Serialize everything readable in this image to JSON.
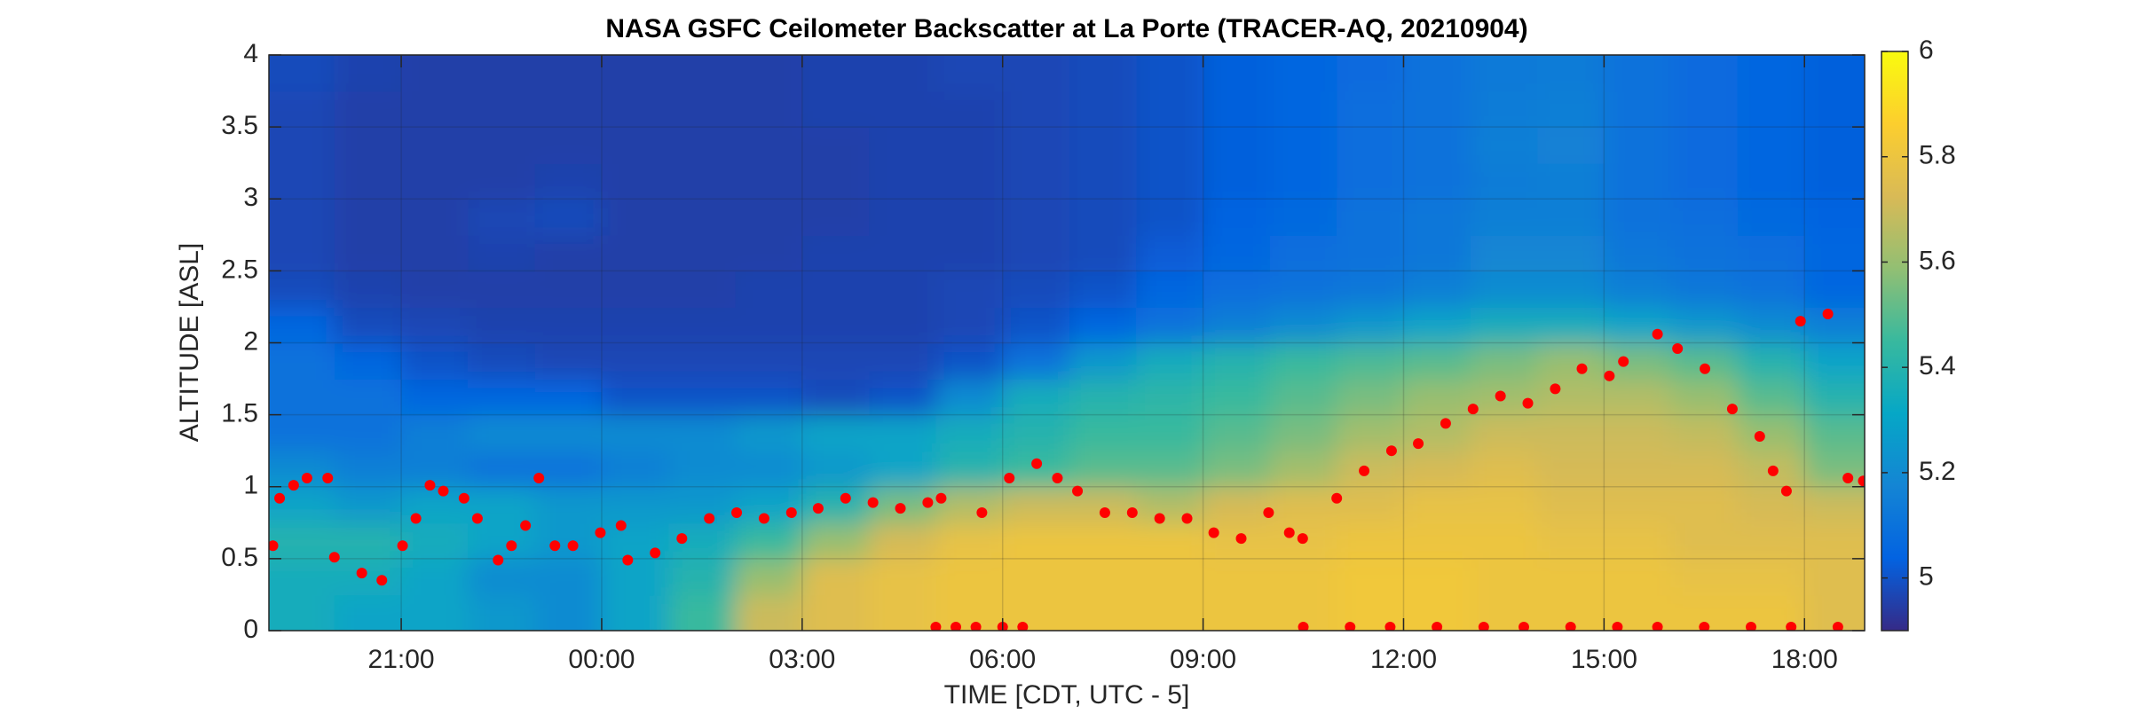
{
  "chart_data": {
    "type": "heatmap",
    "title": "NASA GSFC Ceilometer Backscatter at La Porte (TRACER-AQ, 20210904)",
    "xlabel": "TIME [CDT, UTC - 5]",
    "ylabel": "ALTITUDE [ASL]",
    "colormap": "parula",
    "grid": true,
    "xlim": [
      19.02,
      42.9
    ],
    "ylim": [
      0,
      4
    ],
    "xticks": [
      {
        "value": 21,
        "label": "21:00"
      },
      {
        "value": 24,
        "label": "00:00"
      },
      {
        "value": 27,
        "label": "03:00"
      },
      {
        "value": 30,
        "label": "06:00"
      },
      {
        "value": 33,
        "label": "09:00"
      },
      {
        "value": 36,
        "label": "12:00"
      },
      {
        "value": 39,
        "label": "15:00"
      },
      {
        "value": 42,
        "label": "18:00"
      }
    ],
    "yticks": [
      0,
      0.5,
      1,
      1.5,
      2,
      2.5,
      3,
      3.5,
      4
    ],
    "clim": [
      4.9,
      6
    ],
    "cticks": [
      5,
      5.2,
      5.4,
      5.6,
      5.8,
      6
    ],
    "x": [
      19.5,
      20.5,
      21.5,
      22.5,
      23.5,
      24.5,
      25.5,
      26.5,
      27.5,
      28.5,
      29.5,
      30.5,
      31.5,
      32.5,
      33.5,
      34.5,
      35.5,
      36.5,
      37.5,
      38.5,
      39.5,
      40.5,
      41.5,
      42.5
    ],
    "y": [
      0.125,
      0.375,
      0.625,
      0.875,
      1.125,
      1.375,
      1.625,
      1.875,
      2.125,
      2.375,
      2.625,
      2.875,
      3.125,
      3.375,
      3.625,
      3.875
    ],
    "z": [
      [
        5.35,
        5.3,
        5.3,
        5.25,
        5.2,
        5.3,
        5.45,
        5.7,
        5.75,
        5.78,
        5.8,
        5.8,
        5.8,
        5.8,
        5.8,
        5.8,
        5.82,
        5.82,
        5.8,
        5.8,
        5.8,
        5.8,
        5.8,
        5.75
      ],
      [
        5.35,
        5.35,
        5.3,
        5.2,
        5.2,
        5.3,
        5.4,
        5.6,
        5.75,
        5.78,
        5.8,
        5.8,
        5.8,
        5.8,
        5.8,
        5.8,
        5.82,
        5.82,
        5.8,
        5.8,
        5.8,
        5.78,
        5.78,
        5.75
      ],
      [
        5.4,
        5.4,
        5.35,
        5.3,
        5.25,
        5.3,
        5.35,
        5.45,
        5.6,
        5.72,
        5.78,
        5.8,
        5.8,
        5.8,
        5.78,
        5.78,
        5.8,
        5.8,
        5.8,
        5.78,
        5.78,
        5.75,
        5.75,
        5.75
      ],
      [
        5.3,
        5.25,
        5.3,
        5.3,
        5.25,
        5.25,
        5.25,
        5.3,
        5.4,
        5.55,
        5.65,
        5.7,
        5.7,
        5.65,
        5.72,
        5.75,
        5.75,
        5.78,
        5.78,
        5.75,
        5.75,
        5.75,
        5.72,
        5.7
      ],
      [
        5.2,
        5.15,
        5.15,
        5.1,
        5.1,
        5.15,
        5.2,
        5.2,
        5.25,
        5.3,
        5.4,
        5.45,
        5.5,
        5.5,
        5.55,
        5.62,
        5.7,
        5.72,
        5.75,
        5.72,
        5.72,
        5.72,
        5.68,
        5.55
      ],
      [
        5.1,
        5.1,
        5.15,
        5.2,
        5.2,
        5.2,
        5.2,
        5.25,
        5.3,
        5.3,
        5.35,
        5.4,
        5.45,
        5.45,
        5.5,
        5.55,
        5.62,
        5.65,
        5.7,
        5.7,
        5.7,
        5.68,
        5.6,
        5.5
      ],
      [
        5.1,
        5.1,
        5.05,
        5.05,
        5.05,
        5.0,
        5.0,
        5.0,
        4.98,
        5.0,
        5.2,
        5.35,
        5.4,
        5.42,
        5.45,
        5.5,
        5.55,
        5.6,
        5.62,
        5.65,
        5.65,
        5.6,
        5.5,
        5.4
      ],
      [
        5.1,
        5.05,
        5.0,
        4.98,
        4.97,
        4.97,
        4.97,
        4.97,
        4.97,
        4.97,
        5.0,
        5.1,
        5.25,
        5.35,
        5.4,
        5.45,
        5.48,
        5.5,
        5.55,
        5.6,
        5.55,
        5.5,
        5.4,
        5.3
      ],
      [
        5.05,
        4.98,
        4.97,
        4.96,
        4.96,
        4.96,
        4.96,
        4.96,
        4.96,
        4.96,
        4.97,
        5.0,
        5.05,
        5.1,
        5.15,
        5.2,
        5.25,
        5.3,
        5.35,
        5.35,
        5.3,
        5.25,
        5.2,
        5.15
      ],
      [
        4.98,
        4.96,
        4.95,
        4.95,
        4.95,
        4.95,
        4.95,
        4.96,
        4.96,
        4.96,
        4.97,
        4.98,
        5.0,
        5.05,
        5.08,
        5.1,
        5.12,
        5.15,
        5.2,
        5.2,
        5.15,
        5.12,
        5.1,
        5.05
      ],
      [
        4.97,
        4.95,
        4.95,
        4.96,
        4.95,
        4.95,
        4.95,
        4.95,
        4.96,
        4.96,
        4.96,
        4.97,
        4.98,
        5.02,
        5.05,
        5.08,
        5.1,
        5.12,
        5.18,
        5.18,
        5.12,
        5.1,
        5.08,
        5.05
      ],
      [
        4.97,
        4.95,
        4.95,
        4.97,
        4.98,
        4.95,
        4.95,
        4.95,
        4.95,
        4.96,
        4.96,
        4.97,
        4.98,
        5.0,
        5.04,
        5.06,
        5.1,
        5.12,
        5.15,
        5.15,
        5.1,
        5.08,
        5.06,
        5.04
      ],
      [
        4.97,
        4.95,
        4.95,
        4.95,
        4.96,
        4.95,
        4.95,
        4.95,
        4.95,
        4.96,
        4.96,
        4.97,
        4.98,
        5.0,
        5.03,
        5.05,
        5.08,
        5.1,
        5.14,
        5.15,
        5.1,
        5.07,
        5.05,
        5.03
      ],
      [
        4.97,
        4.95,
        4.95,
        4.95,
        4.95,
        4.95,
        4.95,
        4.95,
        4.95,
        4.96,
        4.96,
        4.97,
        4.98,
        5.0,
        5.03,
        5.05,
        5.08,
        5.1,
        5.15,
        5.16,
        5.1,
        5.07,
        5.05,
        5.03
      ],
      [
        4.97,
        4.95,
        4.95,
        4.95,
        4.95,
        4.95,
        4.95,
        4.95,
        4.96,
        4.96,
        4.96,
        4.97,
        4.98,
        5.0,
        5.03,
        5.05,
        5.08,
        5.1,
        5.14,
        5.15,
        5.1,
        5.07,
        5.05,
        5.03
      ],
      [
        4.98,
        4.96,
        4.95,
        4.95,
        4.95,
        4.95,
        4.95,
        4.95,
        4.96,
        4.96,
        4.97,
        4.97,
        4.98,
        5.0,
        5.03,
        5.05,
        5.07,
        5.1,
        5.13,
        5.14,
        5.1,
        5.07,
        5.05,
        5.03
      ]
    ],
    "points": {
      "type": "scatter",
      "color": "#ff0000",
      "x": [
        19.08,
        19.18,
        19.39,
        19.59,
        19.9,
        20.0,
        20.41,
        20.71,
        21.02,
        21.22,
        21.43,
        21.63,
        21.94,
        22.14,
        22.45,
        22.65,
        22.86,
        23.06,
        23.3,
        23.57,
        23.98,
        24.29,
        24.39,
        24.8,
        25.2,
        25.61,
        26.02,
        26.43,
        26.84,
        27.24,
        27.65,
        28.06,
        28.47,
        28.88,
        29.08,
        29.69,
        30.1,
        30.51,
        30.82,
        31.12,
        31.53,
        31.94,
        32.35,
        32.76,
        33.16,
        33.57,
        33.98,
        34.29,
        34.49,
        35.0,
        35.41,
        35.82,
        36.22,
        36.63,
        37.04,
        37.45,
        37.86,
        38.27,
        38.67,
        39.08,
        39.29,
        39.8,
        40.1,
        40.51,
        40.92,
        41.33,
        41.53,
        41.73,
        41.94,
        42.35,
        42.65,
        42.88,
        29.0,
        29.3,
        29.6,
        30.0,
        30.3,
        34.5,
        35.2,
        35.8,
        36.5,
        37.2,
        37.8,
        38.5,
        39.2,
        39.8,
        40.5,
        41.2,
        41.8,
        42.5
      ],
      "y": [
        0.59,
        0.92,
        1.01,
        1.06,
        1.06,
        0.51,
        0.4,
        0.35,
        0.59,
        0.78,
        1.01,
        0.97,
        0.92,
        0.78,
        0.49,
        0.59,
        0.73,
        1.06,
        0.59,
        0.59,
        0.68,
        0.73,
        0.49,
        0.54,
        0.64,
        0.78,
        0.82,
        0.78,
        0.82,
        0.85,
        0.92,
        0.89,
        0.85,
        0.89,
        0.92,
        0.82,
        1.06,
        1.16,
        1.06,
        0.97,
        0.82,
        0.82,
        0.78,
        0.78,
        0.68,
        0.64,
        0.82,
        0.68,
        0.64,
        0.92,
        1.11,
        1.25,
        1.3,
        1.44,
        1.54,
        1.63,
        1.58,
        1.68,
        1.82,
        1.77,
        1.87,
        2.06,
        1.96,
        1.82,
        1.54,
        1.35,
        1.11,
        0.97,
        2.15,
        2.2,
        1.06,
        1.04,
        0,
        0,
        0,
        0,
        0,
        0,
        0,
        0,
        0,
        0,
        0,
        0,
        0,
        0,
        0,
        0,
        0,
        0
      ]
    }
  }
}
